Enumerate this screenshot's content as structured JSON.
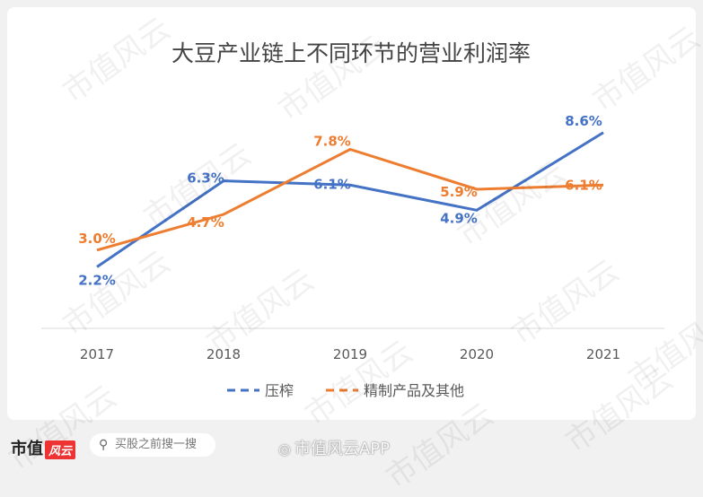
{
  "chart_data": {
    "type": "line",
    "title": "大豆产业链上不同环节的营业利润率",
    "categories": [
      "2017",
      "2018",
      "2019",
      "2020",
      "2021"
    ],
    "series": [
      {
        "name": "压榨",
        "values": [
          2.2,
          6.3,
          6.1,
          4.9,
          8.6
        ],
        "labels": [
          "2.2%",
          "6.3%",
          "6.1%",
          "4.9%",
          "8.6%"
        ],
        "color": "#4472c4",
        "style": "solid"
      },
      {
        "name": "精制产品及其他",
        "values": [
          3.0,
          4.7,
          7.8,
          5.9,
          6.1
        ],
        "labels": [
          "3.0%",
          "4.7%",
          "7.8%",
          "5.9%",
          "6.1%"
        ],
        "color": "#ed7d31",
        "style": "solid"
      }
    ],
    "legend": "bottom",
    "grid": false
  },
  "watermark": "市值风云",
  "footer": {
    "brand": "市值",
    "brand_logo": "风云",
    "search_placeholder": "买股之前搜一搜",
    "app_label": "市值风云APP"
  }
}
